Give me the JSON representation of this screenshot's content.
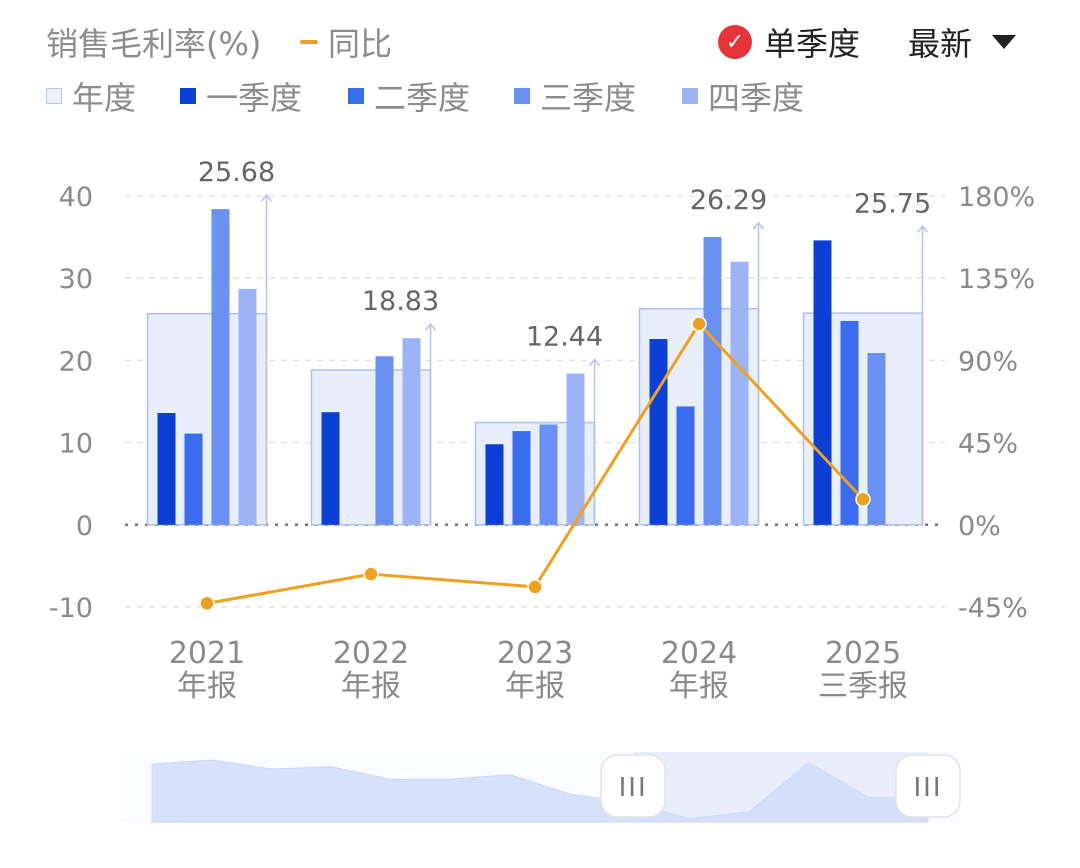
{
  "header": {
    "metric_label": "销售毛利率(%)",
    "yoy_label": "同比",
    "single_quarter_label": "单季度",
    "latest_label": "最新"
  },
  "legend": {
    "annual": "年度",
    "q1": "一季度",
    "q2": "二季度",
    "q3": "三季度",
    "q4": "四季度"
  },
  "colors": {
    "q1": "#0b3fd6",
    "q2": "#3a6cf0",
    "q3": "#6b90f4",
    "q4": "#9db3f7",
    "annual_fill": "#e9eefc",
    "annual_border": "#aebff0",
    "yoy_line": "#f0a020",
    "check": "#e8333b"
  },
  "chart_data": {
    "type": "bar",
    "categories": [
      [
        "2021",
        "年报"
      ],
      [
        "2022",
        "年报"
      ],
      [
        "2023",
        "年报"
      ],
      [
        "2024",
        "年报"
      ],
      [
        "2025",
        "三季报"
      ]
    ],
    "annual_values": [
      25.68,
      18.83,
      12.44,
      26.29,
      25.75
    ],
    "annual_labels": [
      "25.68",
      "18.83",
      "12.44",
      "26.29",
      "25.75"
    ],
    "series": [
      {
        "name": "一季度",
        "values": [
          13.6,
          13.7,
          9.8,
          22.6,
          34.6
        ]
      },
      {
        "name": "二季度",
        "values": [
          11.1,
          null,
          11.4,
          14.4,
          24.8
        ]
      },
      {
        "name": "三季度",
        "values": [
          38.4,
          20.5,
          12.2,
          35.0,
          20.9
        ]
      },
      {
        "name": "四季度",
        "values": [
          28.7,
          22.7,
          18.4,
          32.0,
          null
        ]
      }
    ],
    "yoy": {
      "name": "同比",
      "values": [
        -43,
        -27,
        -34,
        110,
        14
      ]
    },
    "ylim": [
      -10,
      40
    ],
    "y_ticks": [
      "-10",
      "0",
      "10",
      "20",
      "30",
      "40"
    ],
    "y2lim": [
      -45,
      180
    ],
    "y2_ticks": [
      "-45%",
      "0%",
      "45%",
      "90%",
      "135%",
      "180%"
    ],
    "zero_line": "dotted"
  },
  "overview": {
    "handle_glyph": "III",
    "window": [
      0.62,
      1.0
    ],
    "profile": [
      25.68,
      27.5,
      23.5,
      24.5,
      18.83,
      19.0,
      21.0,
      12.44,
      8.5,
      1.5,
      4.5,
      26.29,
      11.0,
      10.5
    ]
  }
}
